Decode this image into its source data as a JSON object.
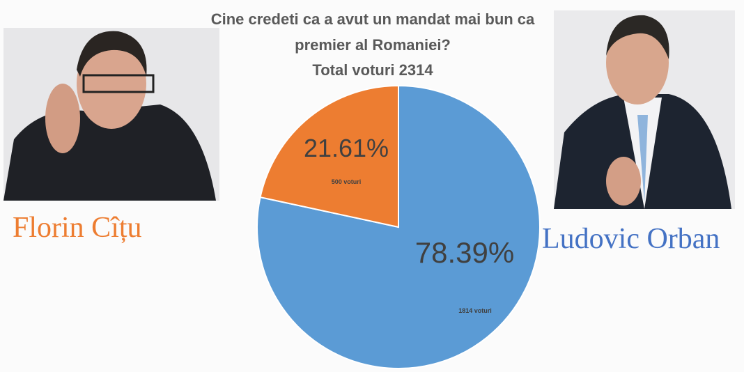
{
  "chart_data": {
    "type": "pie",
    "title": [
      "Cine credeti ca a avut un mandat mai bun ca",
      "premier al Romaniei?",
      "Total voturi 2314"
    ],
    "categories": [
      "Ludovic Orban",
      "Florin Cîțu"
    ],
    "values": [
      78.39,
      21.61
    ],
    "value_labels": [
      "78.39%",
      "21.61%"
    ],
    "annotations": [
      "1814 voturi",
      "500 voturi"
    ],
    "colors": [
      "#5b9bd5",
      "#ed7d31"
    ]
  }
}
